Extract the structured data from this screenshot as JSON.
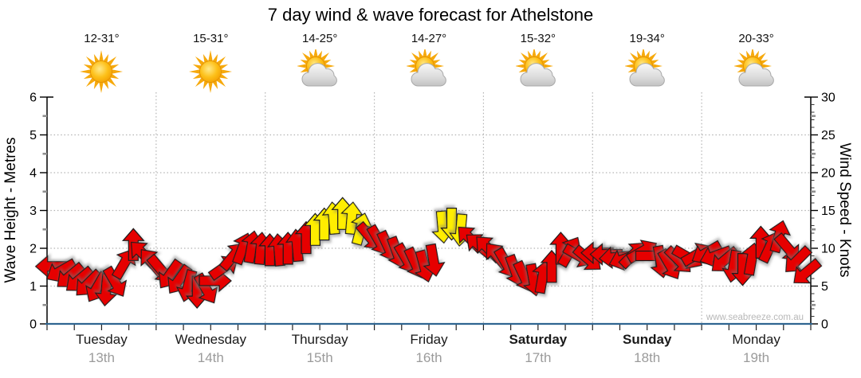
{
  "title": "7 day wind & wave forecast for Athelstone",
  "watermark": "www.seabreeze.com.au",
  "days": [
    {
      "name": "Tuesday",
      "date": "13th",
      "temp": "12-31°",
      "icon": "sunny",
      "bold": false
    },
    {
      "name": "Wednesday",
      "date": "14th",
      "temp": "15-31°",
      "icon": "sunny",
      "bold": false
    },
    {
      "name": "Thursday",
      "date": "15th",
      "temp": "14-25°",
      "icon": "partly-cloudy",
      "bold": false
    },
    {
      "name": "Friday",
      "date": "16th",
      "temp": "14-27°",
      "icon": "partly-cloudy",
      "bold": false
    },
    {
      "name": "Saturday",
      "date": "17th",
      "temp": "15-32°",
      "icon": "partly-cloudy",
      "bold": true
    },
    {
      "name": "Sunday",
      "date": "18th",
      "temp": "19-34°",
      "icon": "partly-cloudy",
      "bold": true
    },
    {
      "name": "Monday",
      "date": "19th",
      "temp": "20-33°",
      "icon": "partly-cloudy",
      "bold": false
    }
  ],
  "colors": {
    "arrow_red": "#e60000",
    "arrow_yellow": "#ffee00",
    "arrow_outline": "#1a1a1a",
    "axis_black": "#000000",
    "baseline_blue": "#2f6591",
    "grid_gray": "#b3b3b3",
    "minor_tick_gray": "#8f8f8f",
    "date_gray": "#9b9b9b",
    "watermark_gray": "#b8b8b8"
  },
  "chart_data": {
    "type": "wind-arrows",
    "title": "7 day wind & wave forecast for Athelstone",
    "left_axis": {
      "title": "Wave Height - Metres",
      "min": 0,
      "max": 6,
      "ticks": [
        0,
        1,
        2,
        3,
        4,
        5,
        6
      ],
      "minor_step": 0.5
    },
    "right_axis": {
      "title": "Wind Speed - Knots",
      "min": 0,
      "max": 30,
      "ticks": [
        0,
        5,
        10,
        15,
        20,
        25,
        30
      ],
      "minor_step": 1
    },
    "x_categories": [
      "Tuesday 13th",
      "Wednesday 14th",
      "Thursday 15th",
      "Friday 16th",
      "Saturday 17th",
      "Sunday 18th",
      "Monday 19th"
    ],
    "slots_per_day": 12,
    "grid": "dotted horizontal at 1-5 m (5-25 kn), dotted vertical at day boundaries",
    "point_format": "[wind_knots, direction_deg_0N_clockwise, color(optional y=yellow, default red)] ; wave_metres = knots/5",
    "points": [
      [
        7.6,
        270
      ],
      [
        7.0,
        240
      ],
      [
        6.3,
        230
      ],
      [
        5.8,
        230
      ],
      [
        5.3,
        225
      ],
      [
        4.8,
        210
      ],
      [
        4.5,
        185
      ],
      [
        5.5,
        150
      ],
      [
        8.0,
        30
      ],
      [
        10.5,
        0
      ],
      [
        9.3,
        315
      ],
      [
        8.2,
        320
      ],
      [
        7.2,
        140
      ],
      [
        6.5,
        215
      ],
      [
        5.8,
        215
      ],
      [
        5.0,
        195
      ],
      [
        4.2,
        180
      ],
      [
        4.6,
        150
      ],
      [
        5.7,
        90
      ],
      [
        7.5,
        55
      ],
      [
        9.0,
        40
      ],
      [
        10.0,
        20
      ],
      [
        10.2,
        10
      ],
      [
        10.0,
        5
      ],
      [
        9.8,
        0
      ],
      [
        9.8,
        355
      ],
      [
        10.0,
        0
      ],
      [
        10.4,
        355
      ],
      [
        11.4,
        0
      ],
      [
        12.5,
        0,
        "y"
      ],
      [
        13.2,
        0,
        "y"
      ],
      [
        14.0,
        355,
        "y"
      ],
      [
        14.6,
        0,
        "y"
      ],
      [
        14.0,
        5,
        "y"
      ],
      [
        12.6,
        15,
        "y"
      ],
      [
        11.5,
        140
      ],
      [
        11.0,
        150
      ],
      [
        10.2,
        155
      ],
      [
        9.4,
        160
      ],
      [
        8.6,
        150
      ],
      [
        8.0,
        155
      ],
      [
        7.6,
        165
      ],
      [
        8.4,
        170
      ],
      [
        12.8,
        175,
        "y"
      ],
      [
        13.2,
        180,
        "y"
      ],
      [
        12.4,
        185,
        "y"
      ],
      [
        11.3,
        315
      ],
      [
        10.4,
        310
      ],
      [
        10.0,
        315
      ],
      [
        9.0,
        320
      ],
      [
        8.0,
        150
      ],
      [
        7.0,
        160
      ],
      [
        6.2,
        155
      ],
      [
        5.8,
        170
      ],
      [
        6.2,
        10
      ],
      [
        7.6,
        0
      ],
      [
        10.0,
        0
      ],
      [
        9.6,
        30
      ],
      [
        9.0,
        120
      ],
      [
        8.6,
        130
      ],
      [
        9.4,
        270
      ],
      [
        9.2,
        270
      ],
      [
        8.8,
        265
      ],
      [
        8.6,
        250
      ],
      [
        9.2,
        45
      ],
      [
        9.6,
        60
      ],
      [
        9.0,
        90
      ],
      [
        8.2,
        170
      ],
      [
        7.8,
        150
      ],
      [
        8.4,
        135
      ],
      [
        8.8,
        120
      ],
      [
        9.2,
        60
      ],
      [
        9.4,
        240
      ],
      [
        9.0,
        250
      ],
      [
        8.4,
        230
      ],
      [
        7.6,
        190
      ],
      [
        7.2,
        180
      ],
      [
        8.6,
        10
      ],
      [
        10.8,
        0
      ],
      [
        10.2,
        25
      ],
      [
        11.6,
        15
      ],
      [
        10.0,
        140
      ],
      [
        8.4,
        225
      ],
      [
        6.8,
        230
      ]
    ]
  }
}
